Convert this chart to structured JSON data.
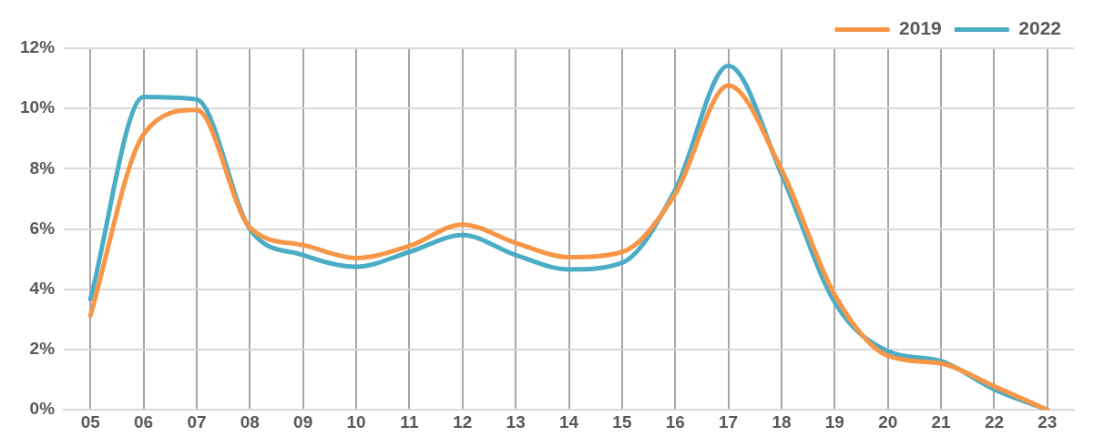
{
  "chart_data": {
    "type": "line",
    "categories": [
      "05",
      "06",
      "07",
      "08",
      "09",
      "10",
      "11",
      "12",
      "13",
      "14",
      "15",
      "16",
      "17",
      "18",
      "19",
      "20",
      "21",
      "22",
      "23"
    ],
    "series": [
      {
        "name": "2019",
        "color": "#f79646",
        "values": [
          3.13,
          9.14,
          9.95,
          6.05,
          5.47,
          5.04,
          5.44,
          6.15,
          5.54,
          5.07,
          5.24,
          7.16,
          10.76,
          7.97,
          3.82,
          1.79,
          1.54,
          0.78,
          0
        ]
      },
      {
        "name": "2022",
        "color": "#4bacc6",
        "values": [
          3.67,
          10.38,
          10.3,
          6.0,
          5.14,
          4.75,
          5.24,
          5.8,
          5.14,
          4.66,
          4.88,
          7.3,
          11.42,
          7.82,
          3.57,
          1.95,
          1.62,
          0.68,
          0
        ]
      }
    ],
    "ylim": [
      0,
      12
    ],
    "yticks": [
      {
        "value": 0,
        "label": "0%"
      },
      {
        "value": 2,
        "label": "2%"
      },
      {
        "value": 4,
        "label": "4%"
      },
      {
        "value": 6,
        "label": "6%"
      },
      {
        "value": 8,
        "label": "8%"
      },
      {
        "value": 10,
        "label": "10%"
      },
      {
        "value": 12,
        "label": "12%"
      }
    ],
    "grid": true,
    "legend": "top right",
    "marker": "none",
    "line_style": "solid"
  }
}
